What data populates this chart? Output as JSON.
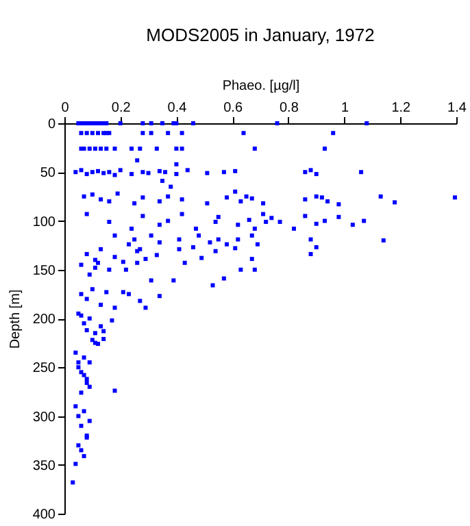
{
  "chart_data": {
    "type": "scatter",
    "title": "MODS2005 in January, 1972",
    "xlabel": "Phaeo. [µg/l]",
    "ylabel": "Depth [m]",
    "x": [
      0.05,
      0.06,
      0.07,
      0.08,
      0.09,
      0.1,
      0.11,
      0.12,
      0.13,
      0.14,
      0.15,
      0.2,
      0.28,
      0.31,
      0.35,
      0.39,
      0.4,
      0.46,
      0.76,
      1.08,
      0.06,
      0.08,
      0.1,
      0.12,
      0.14,
      0.15,
      0.16,
      0.28,
      0.31,
      0.37,
      0.42,
      0.64,
      0.96,
      0.06,
      0.07,
      0.09,
      0.11,
      0.13,
      0.15,
      0.18,
      0.24,
      0.27,
      0.33,
      0.4,
      0.42,
      0.68,
      0.93,
      0.26,
      0.4,
      0.04,
      0.06,
      0.08,
      0.1,
      0.12,
      0.14,
      0.16,
      0.18,
      0.2,
      0.24,
      0.28,
      0.3,
      0.34,
      0.36,
      0.4,
      0.44,
      0.51,
      0.57,
      0.61,
      0.86,
      0.88,
      0.9,
      1.06,
      0.35,
      0.38,
      0.07,
      0.1,
      0.13,
      0.16,
      0.19,
      0.25,
      0.28,
      0.34,
      0.37,
      0.42,
      0.51,
      0.58,
      0.61,
      0.63,
      0.65,
      0.67,
      0.71,
      0.86,
      0.9,
      0.92,
      0.94,
      0.98,
      1.13,
      1.18,
      1.395,
      0.08,
      0.16,
      0.24,
      0.28,
      0.34,
      0.37,
      0.42,
      0.47,
      0.54,
      0.55,
      0.62,
      0.66,
      0.68,
      0.71,
      0.72,
      0.74,
      0.77,
      0.82,
      0.86,
      0.9,
      0.93,
      0.98,
      1.03,
      1.07,
      0.18,
      0.23,
      0.25,
      0.27,
      0.31,
      0.34,
      0.41,
      0.46,
      0.48,
      0.52,
      0.55,
      0.58,
      0.61,
      0.62,
      0.67,
      0.69,
      0.88,
      0.9,
      1.14,
      0.08,
      0.11,
      0.13,
      0.18,
      0.21,
      0.26,
      0.29,
      0.33,
      0.41,
      0.43,
      0.49,
      0.54,
      0.67,
      0.88,
      0.12,
      0.16,
      0.22,
      0.26,
      0.31,
      0.39,
      0.53,
      0.57,
      0.63,
      0.68,
      0.06,
      0.09,
      0.11,
      0.06,
      0.08,
      0.1,
      0.13,
      0.15,
      0.18,
      0.21,
      0.23,
      0.27,
      0.29,
      0.34,
      0.05,
      0.07,
      0.09,
      0.11,
      0.13,
      0.14,
      0.17,
      0.14,
      0.11,
      0.06,
      0.08,
      0.1,
      0.12,
      0.04,
      0.05,
      0.06,
      0.07,
      0.08,
      0.09,
      0.05,
      0.07,
      0.08,
      0.06,
      0.09,
      0.18,
      0.04,
      0.05,
      0.06,
      0.07,
      0.08,
      0.09,
      0.05,
      0.07,
      0.06,
      0.08,
      0.04,
      0.03
    ],
    "values": [
      0,
      0,
      0,
      0,
      0,
      0,
      0,
      0,
      0,
      0,
      0,
      0,
      0,
      0,
      0,
      0,
      0,
      0,
      0,
      0,
      10,
      10,
      10,
      10,
      10,
      10,
      10,
      10,
      10,
      10,
      10,
      10,
      10,
      26,
      26,
      26,
      26,
      26,
      26,
      26,
      26,
      26,
      26,
      26,
      26,
      26,
      26,
      38,
      42,
      50,
      48,
      52,
      50,
      49,
      51,
      50,
      53,
      48,
      52,
      50,
      51,
      49,
      50,
      52,
      48,
      51,
      50,
      49,
      50,
      48,
      52,
      50,
      59,
      65,
      75,
      73,
      78,
      80,
      72,
      82,
      76,
      80,
      75,
      78,
      82,
      76,
      70,
      80,
      75,
      77,
      82,
      78,
      75,
      76,
      80,
      83,
      75,
      81,
      76,
      93,
      101,
      108,
      95,
      104,
      100,
      93,
      108,
      101,
      96,
      104,
      99,
      108,
      93,
      101,
      97,
      101,
      108,
      95,
      103,
      100,
      96,
      104,
      100,
      115,
      124,
      119,
      129,
      115,
      122,
      119,
      127,
      115,
      122,
      119,
      124,
      128,
      119,
      115,
      124,
      119,
      127,
      120,
      134,
      140,
      129,
      137,
      142,
      131,
      139,
      135,
      129,
      143,
      138,
      131,
      139,
      134,
      143,
      150,
      150,
      143,
      161,
      161,
      166,
      159,
      150,
      150,
      145,
      155,
      148,
      175,
      180,
      170,
      186,
      173,
      189,
      173,
      175,
      182,
      189,
      177,
      195,
      205,
      200,
      215,
      208,
      213,
      202,
      221,
      225,
      197,
      212,
      222,
      226,
      235,
      245,
      255,
      240,
      262,
      270,
      250,
      258,
      266,
      276,
      245,
      274,
      290,
      300,
      310,
      295,
      320,
      305,
      330,
      341,
      335,
      322,
      349,
      368
    ],
    "color": "#0000ff",
    "marker": "square",
    "xlim": [
      0,
      1.4
    ],
    "xticks": [
      0,
      0.2,
      0.4,
      0.6,
      0.8,
      1,
      1.2,
      1.4
    ],
    "ylim": [
      400,
      0
    ],
    "yticks": [
      0,
      50,
      100,
      150,
      200,
      250,
      300,
      350,
      400
    ],
    "grid": false
  }
}
